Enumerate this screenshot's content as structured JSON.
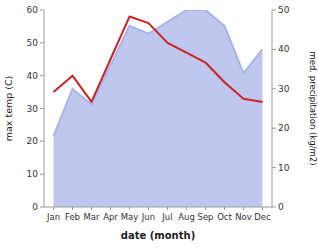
{
  "chart_data": {
    "type": "line",
    "xlabel": "date (month)",
    "ylabel": "max temp (C)",
    "y2label": "med. precipitation (kg/m2)",
    "categories": [
      "Jan",
      "Feb",
      "Mar",
      "Apr",
      "May",
      "Jun",
      "Jul",
      "Aug",
      "Sep",
      "Oct",
      "Nov",
      "Dec"
    ],
    "series": [
      {
        "name": "max temp (C)",
        "type": "line",
        "color": "#cc2222",
        "values": [
          35,
          40,
          32,
          45,
          58,
          56,
          50,
          47,
          44,
          38,
          33,
          32
        ]
      },
      {
        "name": "med. precipitation (kg/m2)",
        "type": "area",
        "axis": "y2",
        "color": "#aab4e8",
        "values": [
          18,
          30,
          26,
          36,
          46,
          44,
          47,
          50,
          50,
          46,
          34,
          40
        ]
      }
    ],
    "ylim": [
      0,
      60
    ],
    "yticks": [
      0,
      10,
      20,
      30,
      40,
      50,
      60
    ],
    "y2lim": [
      0,
      50
    ],
    "y2ticks": [
      0,
      10,
      20,
      30,
      40,
      50
    ],
    "grid": false
  }
}
